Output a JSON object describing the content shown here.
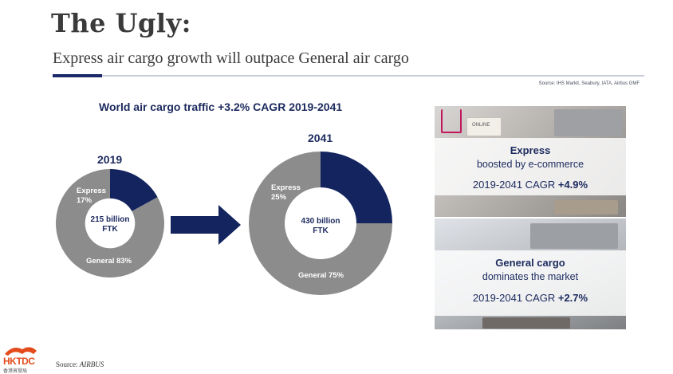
{
  "title": "The Ugly:",
  "subtitle": "Express air cargo growth will outpace General air cargo",
  "source_top": "Source: IHS Markit, Seabury, IATA, Airbus GMF",
  "source_bottom_prefix": "Source: ",
  "source_bottom_name": "AIRBUS",
  "logo_text": "HKTDC",
  "logo_cn": "香港貿發局",
  "colors": {
    "express": "#13245e",
    "general": "#8c8c8c",
    "accent": "#1c2a6b"
  },
  "chart_data": [
    {
      "type": "pie",
      "title": "World air cargo traffic +3.2% CAGR 2019-2041",
      "subtitle": "2019",
      "center_label": [
        "215 billion",
        "FTK"
      ],
      "categories": [
        "Express",
        "General"
      ],
      "values": [
        17,
        83
      ],
      "labels": [
        "Express 17%",
        "General 83%"
      ]
    },
    {
      "type": "pie",
      "subtitle": "2041",
      "center_label": [
        "430 billion",
        "FTK"
      ],
      "categories": [
        "Express",
        "General"
      ],
      "values": [
        25,
        75
      ],
      "labels": [
        "Express 25%",
        "General 75%"
      ]
    }
  ],
  "chart_text": {
    "headline": "World air cargo traffic +3.2% CAGR 2019-2041",
    "y2019": "2019",
    "y2041": "2041",
    "express_2019": [
      "Express",
      "17%"
    ],
    "general_2019": "General 83%",
    "center_2019": [
      "215 billion",
      "FTK"
    ],
    "express_2041": [
      "Express",
      "25%"
    ],
    "general_2041": "General 75%",
    "center_2041": [
      "430 billion",
      "FTK"
    ]
  },
  "cards": {
    "express": {
      "heading": "Express",
      "sub": "boosted by e-commerce",
      "cagr_prefix": "2019-2041 CAGR ",
      "cagr_value": "+4.9%",
      "photo_tag": "ONLINE"
    },
    "general": {
      "heading": "General cargo",
      "sub": "dominates the market",
      "cagr_prefix": "2019-2041 CAGR ",
      "cagr_value": "+2.7%"
    }
  }
}
